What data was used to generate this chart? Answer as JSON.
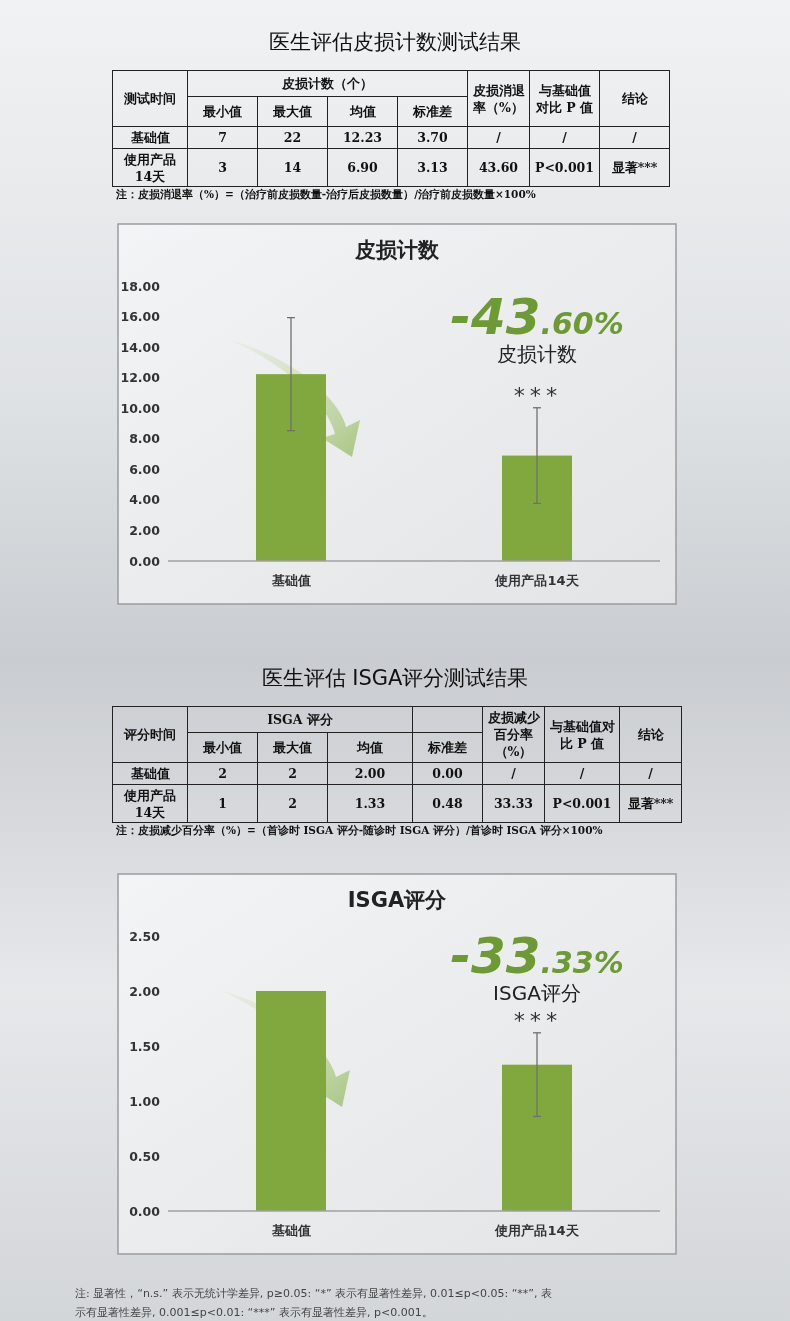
{
  "chart_data": [
    {
      "type": "other",
      "title": "医生评估皮损计数测试结果",
      "annotations": [
        "测试时间",
        "皮损计数（个）",
        "皮损消退率（%）",
        "与基础值对比 P 值",
        "结论",
        "最小值",
        "最大值",
        "均值",
        "标准差",
        "基础值",
        "7",
        "22",
        "12.23",
        "3.70",
        "/",
        "/",
        "/",
        "使用产品14天",
        "3",
        "14",
        "6.90",
        "3.13",
        "43.60",
        "P<0.001",
        "显著***",
        "注：皮损消退率（%）=（治疗前皮损数量-治疗后皮损数量）/治疗前皮损数量×100%"
      ]
    },
    {
      "type": "bar",
      "title": "皮损计数",
      "categories": [
        "基础值",
        "使用产品14天"
      ],
      "values": [
        12.23,
        6.9
      ],
      "errors": [
        3.7,
        3.13
      ],
      "color": "#80a83e",
      "ylim": [
        0,
        18
      ],
      "yticks": [
        {
          "value": 0,
          "label": "0.00"
        },
        {
          "value": 2,
          "label": "2.00"
        },
        {
          "value": 4,
          "label": "4.00"
        },
        {
          "value": 6,
          "label": "6.00"
        },
        {
          "value": 8,
          "label": "8.00"
        },
        {
          "value": 10,
          "label": "10.00"
        },
        {
          "value": 12,
          "label": "12.00"
        },
        {
          "value": 14,
          "label": "14.00"
        },
        {
          "value": 16,
          "label": "16.00"
        },
        {
          "value": 18,
          "label": "18.00"
        }
      ],
      "grid": false,
      "annotations": [
        "-43.60%",
        "皮损计数",
        {
          "text": "***",
          "x": "使用产品14天",
          "y": 10.03
        }
      ]
    },
    {
      "type": "other",
      "title": "医生评估 ISGA评分测试结果",
      "annotations": [
        "评分时间",
        "ISGA 评分",
        "皮损减少百分率（%）",
        "与基础值对比 P 值",
        "结论",
        "最小值",
        "最大值",
        "均值",
        "标准差",
        "基础值",
        "2",
        "2",
        "2.00",
        "0.00",
        "/",
        "/",
        "/",
        "使用产品14天",
        "1",
        "2",
        "1.33",
        "0.48",
        "33.33",
        "P<0.001",
        "显著***",
        "注：皮损减少百分率（%）=（首诊时 ISGA 评分-随诊时 ISGA 评分）/首诊时 ISGA 评分×100%"
      ]
    },
    {
      "type": "bar",
      "title": "ISGA评分",
      "categories": [
        "基础值",
        "使用产品14天"
      ],
      "values": [
        2.0,
        1.33
      ],
      "errors": [
        null,
        [
          0.86,
          1.62
        ]
      ],
      "color": "#80a83e",
      "ylim": [
        0,
        2.5
      ],
      "yticks": [
        {
          "value": 0,
          "label": "0.00"
        },
        {
          "value": 0.5,
          "label": "0.50"
        },
        {
          "value": 1,
          "label": "1.00"
        },
        {
          "value": 1.5,
          "label": "1.50"
        },
        {
          "value": 2,
          "label": "2.00"
        },
        {
          "value": 2.5,
          "label": "2.50"
        }
      ],
      "grid": false,
      "annotations": [
        "-33.33%",
        "ISGA评分",
        {
          "text": "***",
          "x": "使用产品14天",
          "y": 1.62
        },
        "注: 显著性，“n.s.” 表示无统计学差异, p≥0.05: “*” 表示有显著性差异, 0.01≤p<0.05: “**”, 表示有显著性差异, 0.001≤p<0.01: “***” 表示有显著性差异, p<0.001。"
      ]
    }
  ]
}
